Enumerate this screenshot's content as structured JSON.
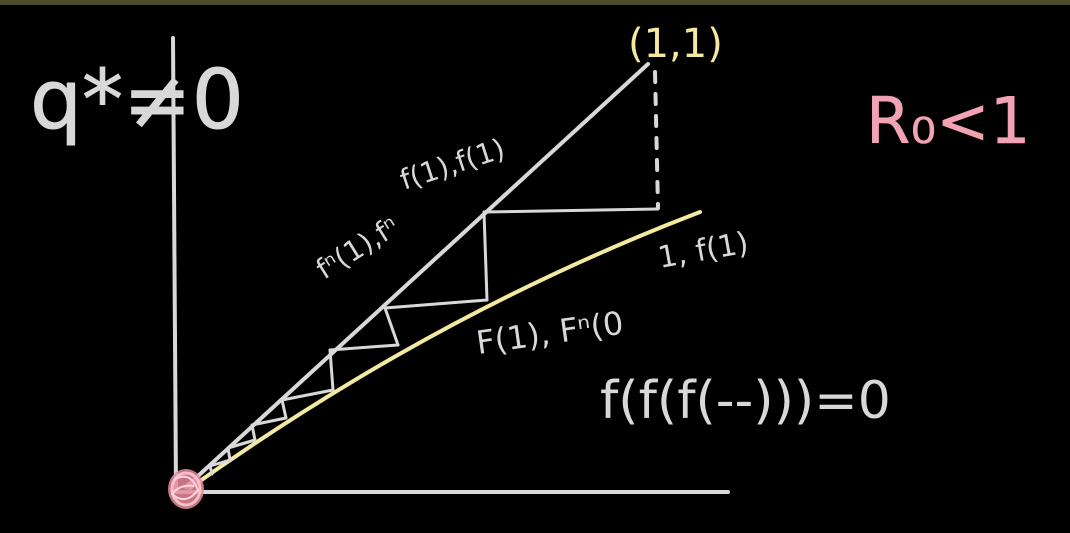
{
  "colors": {
    "background": "#000000",
    "chalk": "#d8d8d8",
    "yellow": "#f3eaa0",
    "pink": "#f2a3b3",
    "strip": "#4a4a2c"
  },
  "labels": {
    "q_star_neq_zero": "q*≠0",
    "r0_lt_1": "R₀<1",
    "point_one_one": "(1,1)",
    "f1_f1": "f(1),f(1)",
    "f_iter_1_f": "fⁿ(1),fⁿ",
    "one_f1": "1, f(1)",
    "f1_fn_0": "F(1), Fⁿ(0",
    "fixed_point_eq": "f(f(f(--)))=0"
  }
}
